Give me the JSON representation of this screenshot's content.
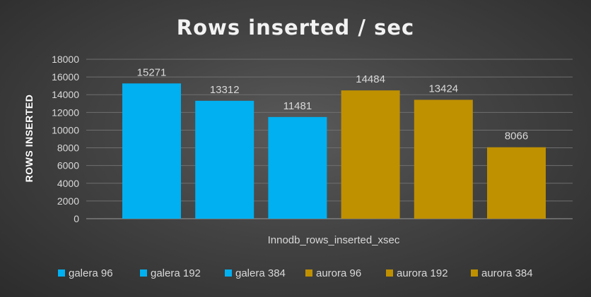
{
  "chart_data": {
    "type": "bar",
    "title": "Rows inserted / sec",
    "ylabel": "ROWS INSERTED",
    "xlabel": "",
    "categories": [
      "Innodb_rows_inserted_xsec"
    ],
    "ylim": [
      0,
      18000
    ],
    "yticks": [
      "0",
      "2000",
      "4000",
      "6000",
      "8000",
      "10000",
      "12000",
      "14000",
      "16000",
      "18000"
    ],
    "grid": true,
    "legend_position": "bottom",
    "series": [
      {
        "name": "galera 96",
        "value": 15271,
        "label": "15271",
        "color": "#00b0f0"
      },
      {
        "name": "galera 192",
        "value": 13312,
        "label": "13312",
        "color": "#00b0f0"
      },
      {
        "name": "galera 384",
        "value": 11481,
        "label": "11481",
        "color": "#00b0f0"
      },
      {
        "name": "aurora 96",
        "value": 14484,
        "label": "14484",
        "color": "#bf9000"
      },
      {
        "name": "aurora 192",
        "value": 13424,
        "label": "13424",
        "color": "#bf9000"
      },
      {
        "name": "aurora 384",
        "value": 8066,
        "label": "8066",
        "color": "#bf9000"
      }
    ]
  }
}
